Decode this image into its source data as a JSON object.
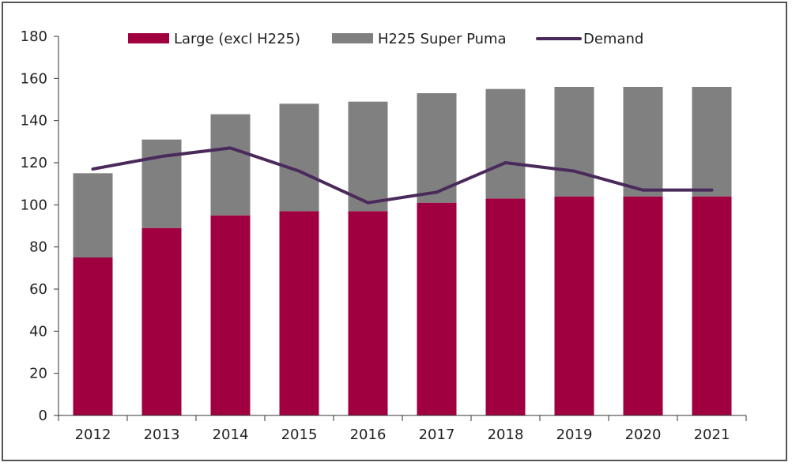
{
  "chart_data": {
    "type": "bar",
    "stacked": true,
    "categories": [
      "2012",
      "2013",
      "2014",
      "2015",
      "2016",
      "2017",
      "2018",
      "2019",
      "2020",
      "2021"
    ],
    "series": [
      {
        "name": "Large (excl H225)",
        "kind": "bar",
        "color": "#a0003f",
        "values": [
          75,
          89,
          95,
          97,
          97,
          101,
          103,
          104,
          104,
          104
        ]
      },
      {
        "name": "H225 Super Puma",
        "kind": "bar",
        "color": "#808080",
        "values": [
          40,
          42,
          48,
          51,
          52,
          52,
          52,
          52,
          52,
          52
        ]
      },
      {
        "name": "Demand",
        "kind": "line",
        "color": "#4a2a5a",
        "values": [
          117,
          123,
          127,
          116,
          101,
          106,
          120,
          116,
          107,
          107
        ]
      }
    ],
    "ylim": [
      0,
      180
    ],
    "yticks": [
      0,
      20,
      40,
      60,
      80,
      100,
      120,
      140,
      160,
      180
    ],
    "grid": false,
    "legend_position": "top"
  }
}
